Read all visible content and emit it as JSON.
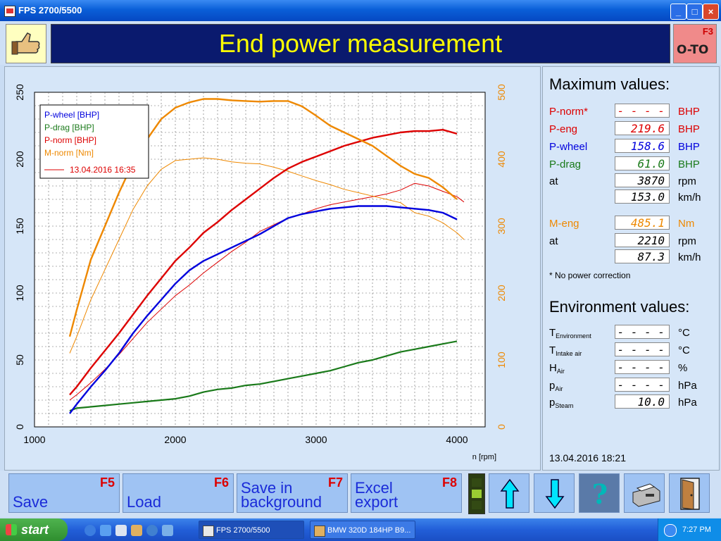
{
  "window": {
    "title": "FPS 2700/5500"
  },
  "header": {
    "title": "End power measurement",
    "f3_key": "F3",
    "f3_symbol": "O-TO"
  },
  "chart_data": {
    "type": "line",
    "xlabel": "n [rpm]",
    "xlim": [
      1000,
      4200
    ],
    "xticks": [
      1000,
      2000,
      3000,
      4000
    ],
    "y_left_lim": [
      0,
      250
    ],
    "y_left_ticks": [
      0,
      50,
      100,
      150,
      200,
      250
    ],
    "y_right_lim": [
      0,
      500
    ],
    "y_right_ticks": [
      0,
      100,
      200,
      300,
      400,
      500
    ],
    "grid": true,
    "legend_position": "top-left",
    "legend_run_label": "13.04.2016 16:35",
    "series": [
      {
        "name": "P-wheel [BHP]",
        "color": "#0000dd",
        "axis": "left",
        "width": 2.4,
        "x": [
          1250,
          1300,
          1400,
          1500,
          1600,
          1700,
          1800,
          1900,
          2000,
          2100,
          2200,
          2300,
          2400,
          2500,
          2600,
          2700,
          2800,
          2900,
          3000,
          3100,
          3200,
          3300,
          3400,
          3500,
          3600,
          3700,
          3800,
          3900,
          4000
        ],
        "y": [
          10,
          17,
          30,
          42,
          55,
          70,
          83,
          95,
          107,
          117,
          124,
          129,
          134,
          139,
          144,
          150,
          156,
          159,
          161,
          163,
          164,
          165,
          165,
          165,
          164,
          163,
          162,
          160,
          155
        ]
      },
      {
        "name": "P-drag [BHP]",
        "color": "#1a7a1a",
        "axis": "left",
        "width": 2.2,
        "x": [
          1250,
          1300,
          1400,
          1500,
          1600,
          1700,
          1800,
          1900,
          2000,
          2100,
          2200,
          2300,
          2400,
          2500,
          2600,
          2700,
          2800,
          2900,
          3000,
          3100,
          3200,
          3300,
          3400,
          3500,
          3600,
          3700,
          3800,
          3900,
          4000
        ],
        "y": [
          12,
          14,
          15,
          16,
          17,
          18,
          19,
          20,
          21,
          23,
          26,
          28,
          29,
          31,
          32,
          34,
          36,
          38,
          40,
          42,
          45,
          48,
          50,
          53,
          56,
          58,
          60,
          62,
          64
        ]
      },
      {
        "name": "P-norm [BHP]",
        "color": "#dd0000",
        "axis": "left",
        "width": 2.4,
        "x": [
          1250,
          1300,
          1400,
          1500,
          1600,
          1700,
          1800,
          1900,
          2000,
          2100,
          2200,
          2300,
          2400,
          2500,
          2600,
          2700,
          2800,
          2900,
          3000,
          3100,
          3200,
          3300,
          3400,
          3500,
          3600,
          3700,
          3800,
          3900,
          4000
        ],
        "y": [
          24,
          30,
          44,
          57,
          70,
          84,
          98,
          111,
          124,
          134,
          145,
          153,
          162,
          170,
          178,
          186,
          193,
          198,
          202,
          206,
          210,
          213,
          216,
          218,
          220,
          221,
          221,
          222,
          219
        ]
      },
      {
        "name": "M-norm [Nm]",
        "color": "#ee8800",
        "axis": "right",
        "width": 2.4,
        "x": [
          1250,
          1300,
          1400,
          1500,
          1600,
          1700,
          1800,
          1900,
          2000,
          2100,
          2200,
          2300,
          2400,
          2500,
          2600,
          2700,
          2800,
          2900,
          3000,
          3100,
          3200,
          3300,
          3400,
          3500,
          3600,
          3700,
          3800,
          3900,
          4000
        ],
        "y": [
          135,
          175,
          250,
          300,
          350,
          395,
          430,
          460,
          477,
          485,
          490,
          490,
          488,
          487,
          486,
          487,
          487,
          479,
          465,
          450,
          440,
          430,
          420,
          405,
          390,
          378,
          372,
          358,
          340
        ]
      },
      {
        "name": "P-wheel (run 13.04.2016 16:35)",
        "color": "#dd0000",
        "axis": "left",
        "width": 1,
        "x": [
          1250,
          1300,
          1400,
          1500,
          1600,
          1700,
          1800,
          1900,
          2000,
          2100,
          2200,
          2300,
          2400,
          2500,
          2600,
          2700,
          2800,
          2900,
          3000,
          3100,
          3200,
          3300,
          3400,
          3500,
          3600,
          3700,
          3800,
          3900,
          4000,
          4050
        ],
        "y": [
          20,
          24,
          33,
          43,
          54,
          66,
          78,
          88,
          98,
          106,
          115,
          123,
          131,
          138,
          146,
          151,
          156,
          159,
          163,
          166,
          168,
          170,
          172,
          174,
          177,
          182,
          180,
          176,
          172,
          168
        ]
      },
      {
        "name": "M-norm (run 13.04.2016 16:35)",
        "color": "#ee8800",
        "axis": "right",
        "width": 1,
        "x": [
          1250,
          1300,
          1400,
          1500,
          1600,
          1700,
          1800,
          1900,
          2000,
          2100,
          2200,
          2300,
          2400,
          2500,
          2600,
          2700,
          2800,
          2900,
          3000,
          3100,
          3200,
          3300,
          3400,
          3500,
          3600,
          3700,
          3800,
          3900,
          4000,
          4050
        ],
        "y": [
          110,
          135,
          190,
          235,
          280,
          325,
          360,
          385,
          398,
          400,
          402,
          400,
          396,
          394,
          393,
          388,
          382,
          375,
          368,
          362,
          355,
          350,
          345,
          340,
          335,
          320,
          315,
          305,
          290,
          280
        ]
      }
    ],
    "legend": [
      "P-wheel [BHP]",
      "P-drag [BHP]",
      "P-norm [BHP]",
      "M-norm [Nm]"
    ]
  },
  "max_values": {
    "title": "Maximum values:",
    "rows": [
      {
        "label": "P-norm*",
        "value": "- - - - .-",
        "unit": "BHP",
        "color": "#dd0000"
      },
      {
        "label": "P-eng",
        "value": "219.6",
        "unit": "BHP",
        "color": "#dd0000"
      },
      {
        "label": "P-wheel",
        "value": "158.6",
        "unit": "BHP",
        "color": "#0000dd"
      },
      {
        "label": "P-drag",
        "value": "61.0",
        "unit": "BHP",
        "color": "#1a7a1a"
      },
      {
        "label": "at",
        "value": "3870",
        "unit": "rpm",
        "color": "#000000"
      },
      {
        "label": "",
        "value": "153.0",
        "unit": "km/h",
        "color": "#000000"
      },
      {
        "label": "M-eng",
        "value": "485.1",
        "unit": "Nm",
        "color": "#ee8800"
      },
      {
        "label": "at",
        "value": "2210",
        "unit": "rpm",
        "color": "#000000"
      },
      {
        "label": "",
        "value": "87.3",
        "unit": "km/h",
        "color": "#000000"
      }
    ],
    "note": "* No power correction"
  },
  "environment": {
    "title": "Environment values:",
    "rows": [
      {
        "main": "T",
        "sub": "Environment",
        "value": "- - - - .-",
        "unit": "°C"
      },
      {
        "main": "T",
        "sub": "Intake air",
        "value": "- - - - .-",
        "unit": "°C"
      },
      {
        "main": "H",
        "sub": "Air",
        "value": "- - - - .-",
        "unit": "%"
      },
      {
        "main": "p",
        "sub": "Air",
        "value": "- - - - .-",
        "unit": "hPa"
      },
      {
        "main": "p",
        "sub": "Steam",
        "value": "10.0",
        "unit": "hPa"
      }
    ]
  },
  "datetime": "13.04.2016   18:21",
  "function_keys": [
    {
      "key": "F5",
      "label": "Save"
    },
    {
      "key": "F6",
      "label": "Load"
    },
    {
      "key": "F7",
      "label": "Save in background"
    },
    {
      "key": "F8",
      "label": "Excel export"
    }
  ],
  "icon_buttons": [
    "arrow-up-icon",
    "arrow-down-icon",
    "help-icon",
    "printer-icon",
    "exit-door-icon"
  ],
  "taskbar": {
    "start_label": "start",
    "tasks": [
      "FPS 2700/5500",
      "BMW 320D 184HP B9..."
    ],
    "clock": "7:27 PM"
  }
}
